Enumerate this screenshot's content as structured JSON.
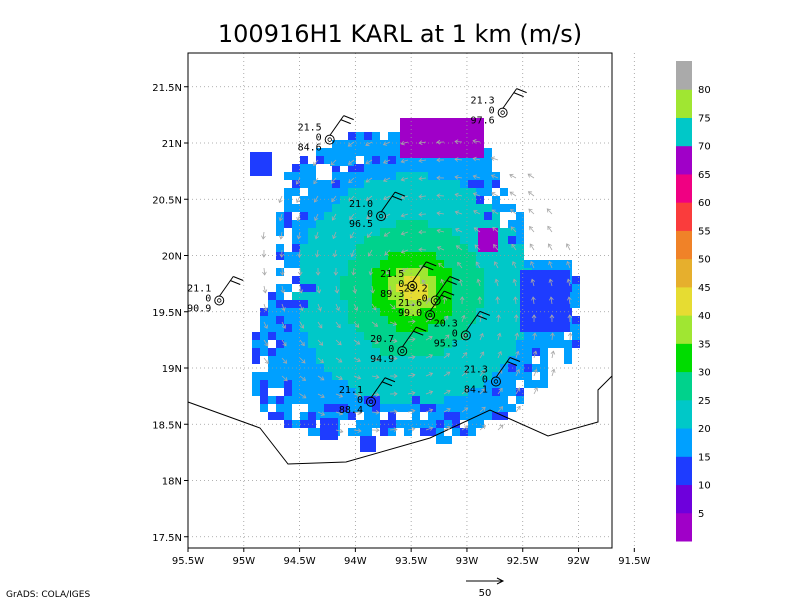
{
  "chart_data": {
    "type": "heatmap",
    "title": "100916H1 KARL at 1 km (m/s)",
    "credit": "GrADS: COLA/IGES",
    "x_ticks": [
      "95.5W",
      "95W",
      "94.5W",
      "94W",
      "93.5W",
      "93W",
      "92.5W",
      "92W",
      "91.5W"
    ],
    "y_ticks": [
      "21.5N",
      "21N",
      "20.5N",
      "20N",
      "19.5N",
      "19N",
      "18.5N",
      "18N",
      "17.5N"
    ],
    "xlim": [
      -95.5,
      -91.7
    ],
    "ylim": [
      17.4,
      21.8
    ],
    "grid": true,
    "legend_position": "right",
    "colorbar": {
      "levels": [
        "5",
        "10",
        "15",
        "20",
        "25",
        "30",
        "35",
        "40",
        "45",
        "50",
        "55",
        "60",
        "65",
        "70",
        "75",
        "80"
      ],
      "colors": [
        "#a000c8",
        "#6e00dc",
        "#1e3cff",
        "#00a0ff",
        "#00c8c8",
        "#00d28c",
        "#00dc00",
        "#a0e632",
        "#e6dc32",
        "#e6af2d",
        "#f08228",
        "#fa3c3c",
        "#f00082",
        "#a000c8",
        "#00c8c8",
        "#a0e632",
        "#aaaaaa"
      ]
    },
    "reference_vector": {
      "label": "50"
    },
    "observations": [
      {
        "id": "a",
        "lon": -92.68,
        "lat": 21.27,
        "labels": [
          "21.3",
          "0",
          "97.6"
        ]
      },
      {
        "id": "b",
        "lon": -94.23,
        "lat": 21.03,
        "labels": [
          "21.5",
          "0",
          "84.6"
        ]
      },
      {
        "id": "c",
        "lon": -93.77,
        "lat": 20.35,
        "labels": [
          "21.0",
          "0",
          "96.5"
        ]
      },
      {
        "id": "d",
        "lon": -95.22,
        "lat": 19.6,
        "labels": [
          "21.1",
          "0",
          "90.9"
        ]
      },
      {
        "id": "e",
        "lon": -93.49,
        "lat": 19.73,
        "labels": [
          "21.5",
          "0",
          "89.3"
        ]
      },
      {
        "id": "f",
        "lon": -93.28,
        "lat": 19.6,
        "labels": [
          "23.2",
          "0"
        ]
      },
      {
        "id": "g",
        "lon": -93.33,
        "lat": 19.47,
        "labels": [
          "21.6",
          "99.0"
        ]
      },
      {
        "id": "h",
        "lon": -93.01,
        "lat": 19.29,
        "labels": [
          "20.3",
          "0",
          "95.3"
        ]
      },
      {
        "id": "i",
        "lon": -93.58,
        "lat": 19.15,
        "labels": [
          "20.7",
          "0",
          "94.9"
        ]
      },
      {
        "id": "j",
        "lon": -92.74,
        "lat": 18.88,
        "labels": [
          "21.3",
          "0",
          "84.1"
        ]
      },
      {
        "id": "k",
        "lon": -93.86,
        "lat": 18.7,
        "labels": [
          "21.1",
          "0",
          "88.4"
        ]
      }
    ]
  }
}
